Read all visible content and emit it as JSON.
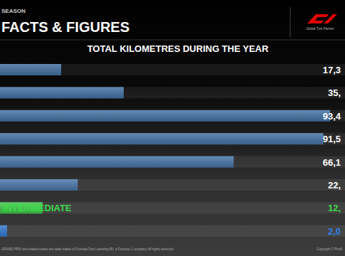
{
  "chart_data": {
    "type": "bar",
    "orientation": "horizontal",
    "title": "FACTS & FIGURES",
    "subtitle": "TOTAL KILOMETRES DURING THE YEAR",
    "annotations": [
      "SEASON",
      "Global Tyre Partner",
      "GRAND PRIX and related marks are trade marks of Formula One Licensing BV, a Formula 1 company. All rights reserved.",
      "Copyright © Pirelli"
    ],
    "categories": [
      null,
      null,
      null,
      null,
      null,
      null,
      "INTERMEDIATE",
      null
    ],
    "values": [
      17300,
      35000,
      93400,
      91500,
      66100,
      22000,
      12000,
      2000
    ],
    "value_labels": [
      "17,3",
      "35,",
      "93,4",
      "91,5",
      "66,1",
      "22,",
      "12,",
      "2,0"
    ],
    "colors": [
      "#4a7fb8",
      "#4a7fb8",
      "#4a7fb8",
      "#4a7fb8",
      "#4a7fb8",
      "#4a7fb8",
      "#3ddc4a",
      "#2f7fe8"
    ],
    "xlim": [
      0,
      95000
    ],
    "data_labels": true,
    "tick_labels": "y",
    "grid": false
  }
}
